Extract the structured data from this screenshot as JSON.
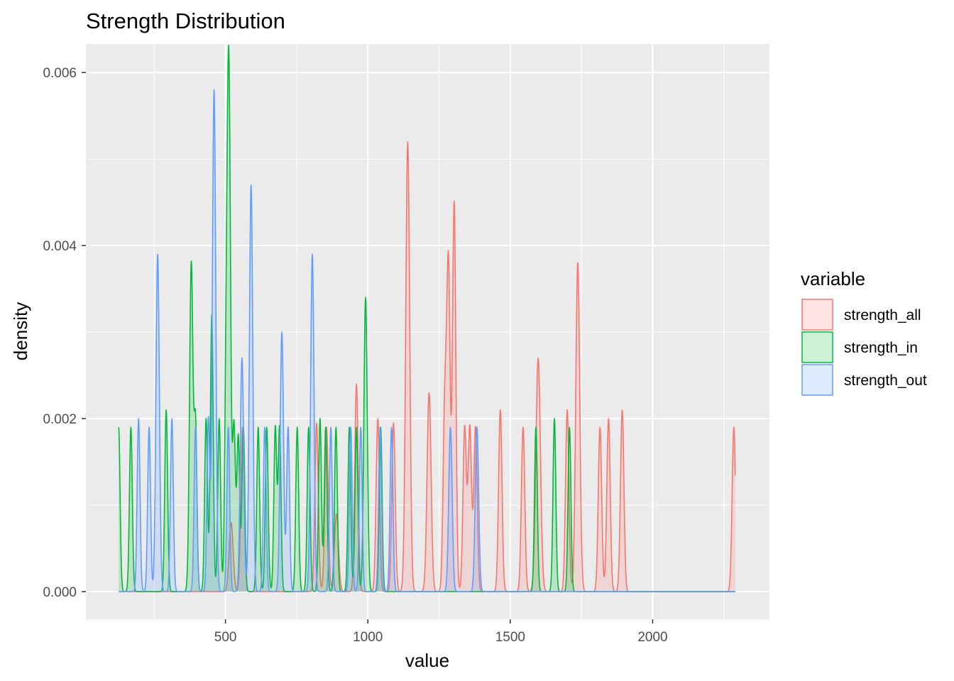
{
  "chart_data": {
    "type": "area",
    "title": "Strength Distribution",
    "xlabel": "value",
    "ylabel": "density",
    "xlim": [
      10,
      2410
    ],
    "ylim": [
      -0.00032,
      0.00633
    ],
    "x_ticks": [
      500,
      1000,
      1500,
      2000
    ],
    "x_tick_labels": [
      "500",
      "1000",
      "1500",
      "2000"
    ],
    "y_ticks": [
      0.0,
      0.002,
      0.004,
      0.006
    ],
    "y_tick_labels": [
      "0.000",
      "0.002",
      "0.004",
      "0.006"
    ],
    "grid": true,
    "legend": {
      "title": "variable",
      "position": "right"
    },
    "series": [
      {
        "name": "strength_all",
        "color": "#F8766D",
        "fill_alpha": 0.2,
        "peaks": [
          [
            520,
            0.0008,
            7
          ],
          [
            560,
            0.0019,
            6
          ],
          [
            820,
            0.00195,
            6
          ],
          [
            855,
            0.0019,
            6
          ],
          [
            890,
            0.0009,
            7
          ],
          [
            960,
            0.0024,
            6
          ],
          [
            1035,
            0.002,
            6
          ],
          [
            1090,
            0.00195,
            6
          ],
          [
            1140,
            0.0052,
            7
          ],
          [
            1215,
            0.0023,
            7
          ],
          [
            1270,
            0.0021,
            6
          ],
          [
            1283,
            0.0037,
            6
          ],
          [
            1303,
            0.0045,
            6
          ],
          [
            1340,
            0.0019,
            6
          ],
          [
            1358,
            0.0019,
            6
          ],
          [
            1378,
            0.0019,
            6
          ],
          [
            1465,
            0.0021,
            6
          ],
          [
            1545,
            0.0019,
            6
          ],
          [
            1598,
            0.0027,
            8
          ],
          [
            1700,
            0.0021,
            6
          ],
          [
            1737,
            0.0038,
            7
          ],
          [
            1815,
            0.0019,
            6
          ],
          [
            1845,
            0.002,
            6
          ],
          [
            1893,
            0.0021,
            6
          ],
          [
            2285,
            0.0019,
            6
          ]
        ]
      },
      {
        "name": "strength_in",
        "color": "#00BA38",
        "fill_alpha": 0.2,
        "peaks": [
          [
            125,
            0.0019,
            5
          ],
          [
            168,
            0.0019,
            5
          ],
          [
            292,
            0.0021,
            5
          ],
          [
            380,
            0.0038,
            6
          ],
          [
            395,
            0.0019,
            5
          ],
          [
            432,
            0.002,
            5
          ],
          [
            452,
            0.0032,
            5
          ],
          [
            478,
            0.002,
            5
          ],
          [
            502,
            0.002,
            5
          ],
          [
            512,
            0.006,
            6
          ],
          [
            530,
            0.0019,
            5
          ],
          [
            545,
            0.0018,
            5
          ],
          [
            563,
            0.0019,
            5
          ],
          [
            615,
            0.0019,
            5
          ],
          [
            645,
            0.0019,
            5
          ],
          [
            675,
            0.0019,
            5
          ],
          [
            690,
            0.0019,
            5
          ],
          [
            752,
            0.0019,
            5
          ],
          [
            792,
            0.0019,
            5
          ],
          [
            832,
            0.002,
            5
          ],
          [
            852,
            0.0019,
            5
          ],
          [
            888,
            0.0019,
            5
          ],
          [
            935,
            0.0019,
            5
          ],
          [
            960,
            0.0019,
            5
          ],
          [
            992,
            0.0034,
            6
          ],
          [
            1045,
            0.0019,
            5
          ],
          [
            1590,
            0.0019,
            5
          ],
          [
            1655,
            0.002,
            5
          ],
          [
            1708,
            0.0019,
            5
          ]
        ]
      },
      {
        "name": "strength_out",
        "color": "#619CFF",
        "fill_alpha": 0.2,
        "peaks": [
          [
            195,
            0.002,
            5
          ],
          [
            232,
            0.0019,
            5
          ],
          [
            262,
            0.0039,
            6
          ],
          [
            312,
            0.002,
            5
          ],
          [
            395,
            0.0019,
            5
          ],
          [
            440,
            0.002,
            5
          ],
          [
            460,
            0.0058,
            6
          ],
          [
            510,
            0.0019,
            5
          ],
          [
            558,
            0.0027,
            6
          ],
          [
            590,
            0.0047,
            6
          ],
          [
            638,
            0.0019,
            5
          ],
          [
            698,
            0.003,
            6
          ],
          [
            720,
            0.0019,
            5
          ],
          [
            805,
            0.0039,
            6
          ],
          [
            870,
            0.0019,
            5
          ],
          [
            940,
            0.0019,
            5
          ],
          [
            975,
            0.0019,
            5
          ],
          [
            1043,
            0.0019,
            5
          ],
          [
            1083,
            0.0019,
            5
          ],
          [
            1290,
            0.0019,
            6
          ],
          [
            1383,
            0.0019,
            6
          ]
        ]
      }
    ]
  }
}
